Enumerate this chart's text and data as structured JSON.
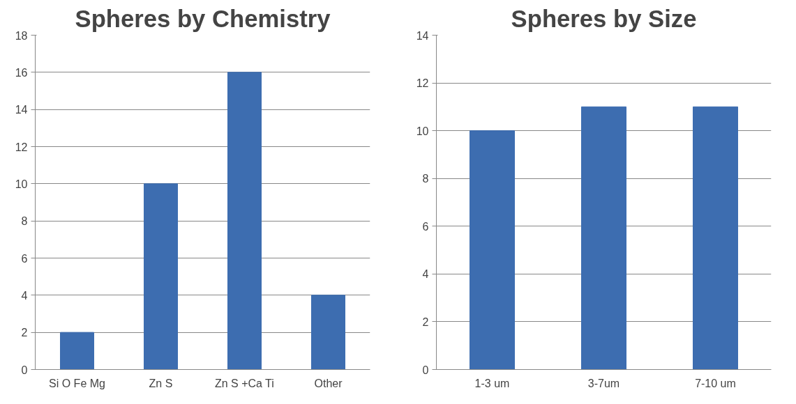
{
  "chart_data": [
    {
      "type": "bar",
      "title": "Spheres by Chemistry",
      "categories": [
        "Si O Fe Mg",
        "Zn S",
        "Zn S +Ca Ti",
        "Other"
      ],
      "values": [
        2,
        10,
        16,
        4
      ],
      "color": "#3d6db0",
      "ylim": [
        0,
        18
      ],
      "yticks": [
        0,
        2,
        4,
        6,
        8,
        10,
        12,
        14,
        16,
        18
      ],
      "grid": "y"
    },
    {
      "type": "bar",
      "title": "Spheres by Size",
      "categories": [
        "1-3 um",
        "3-7um",
        "7-10 um"
      ],
      "values": [
        10,
        11,
        11
      ],
      "color": "#3d6db0",
      "ylim": [
        0,
        14
      ],
      "yticks": [
        0,
        2,
        4,
        6,
        8,
        10,
        12,
        14
      ],
      "grid": "y"
    }
  ]
}
